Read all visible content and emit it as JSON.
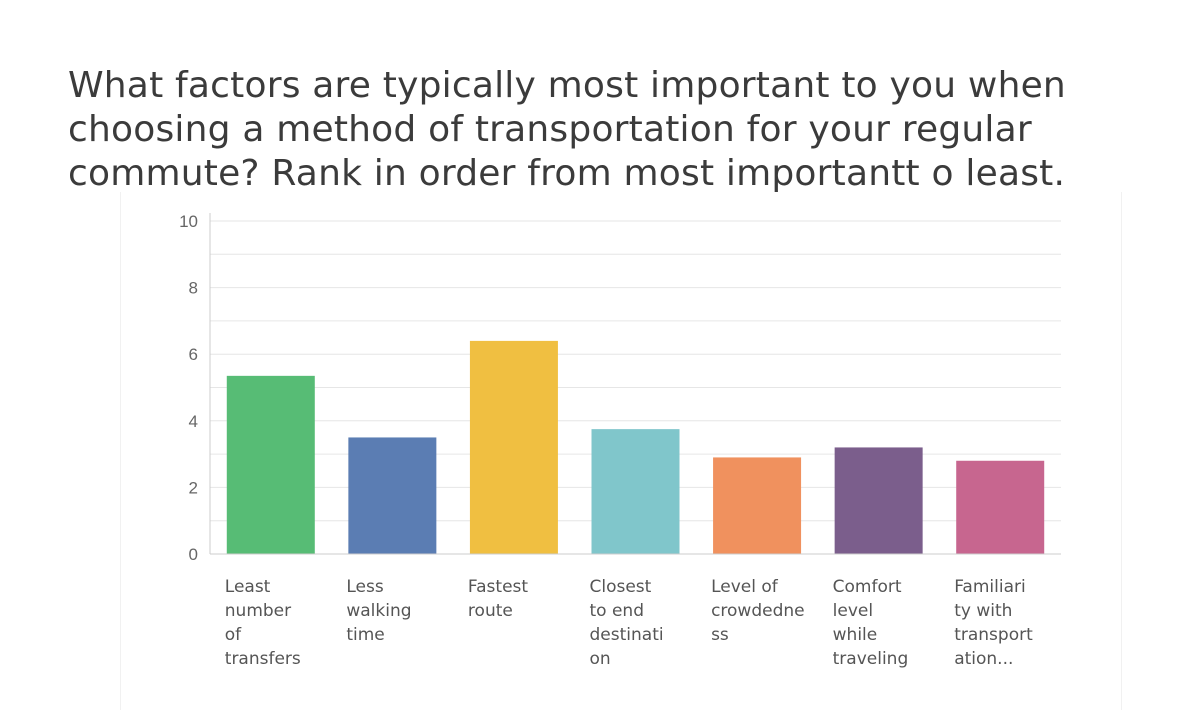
{
  "title": "What factors are typically most important to you when choosing a method of transportation for your regular commute? Rank in order from most importantt o least.",
  "chart_data": {
    "type": "bar",
    "categories": [
      [
        "Least",
        "number",
        "of",
        "transfers"
      ],
      [
        "Less",
        "walking",
        "time"
      ],
      [
        "Fastest",
        "route"
      ],
      [
        "Closest",
        "to end",
        "destinati",
        "on"
      ],
      [
        "Level of",
        "crowdedne",
        "ss"
      ],
      [
        "Comfort",
        "level",
        "while",
        "traveling"
      ],
      [
        "Familiari",
        "ty with",
        "transport",
        "ation..."
      ]
    ],
    "values": [
      5.35,
      3.5,
      6.4,
      3.75,
      2.9,
      3.2,
      2.8
    ],
    "colors": [
      "#57bc75",
      "#5b7db3",
      "#f0bf41",
      "#80c6cb",
      "#f0915e",
      "#7b5e8c",
      "#c7668f"
    ],
    "ylim": [
      0,
      10
    ],
    "yticks": [
      0,
      2,
      4,
      6,
      8,
      10
    ],
    "grid": true,
    "gridline_color": "#e6e6e6",
    "axis_color": "#cccccc"
  }
}
